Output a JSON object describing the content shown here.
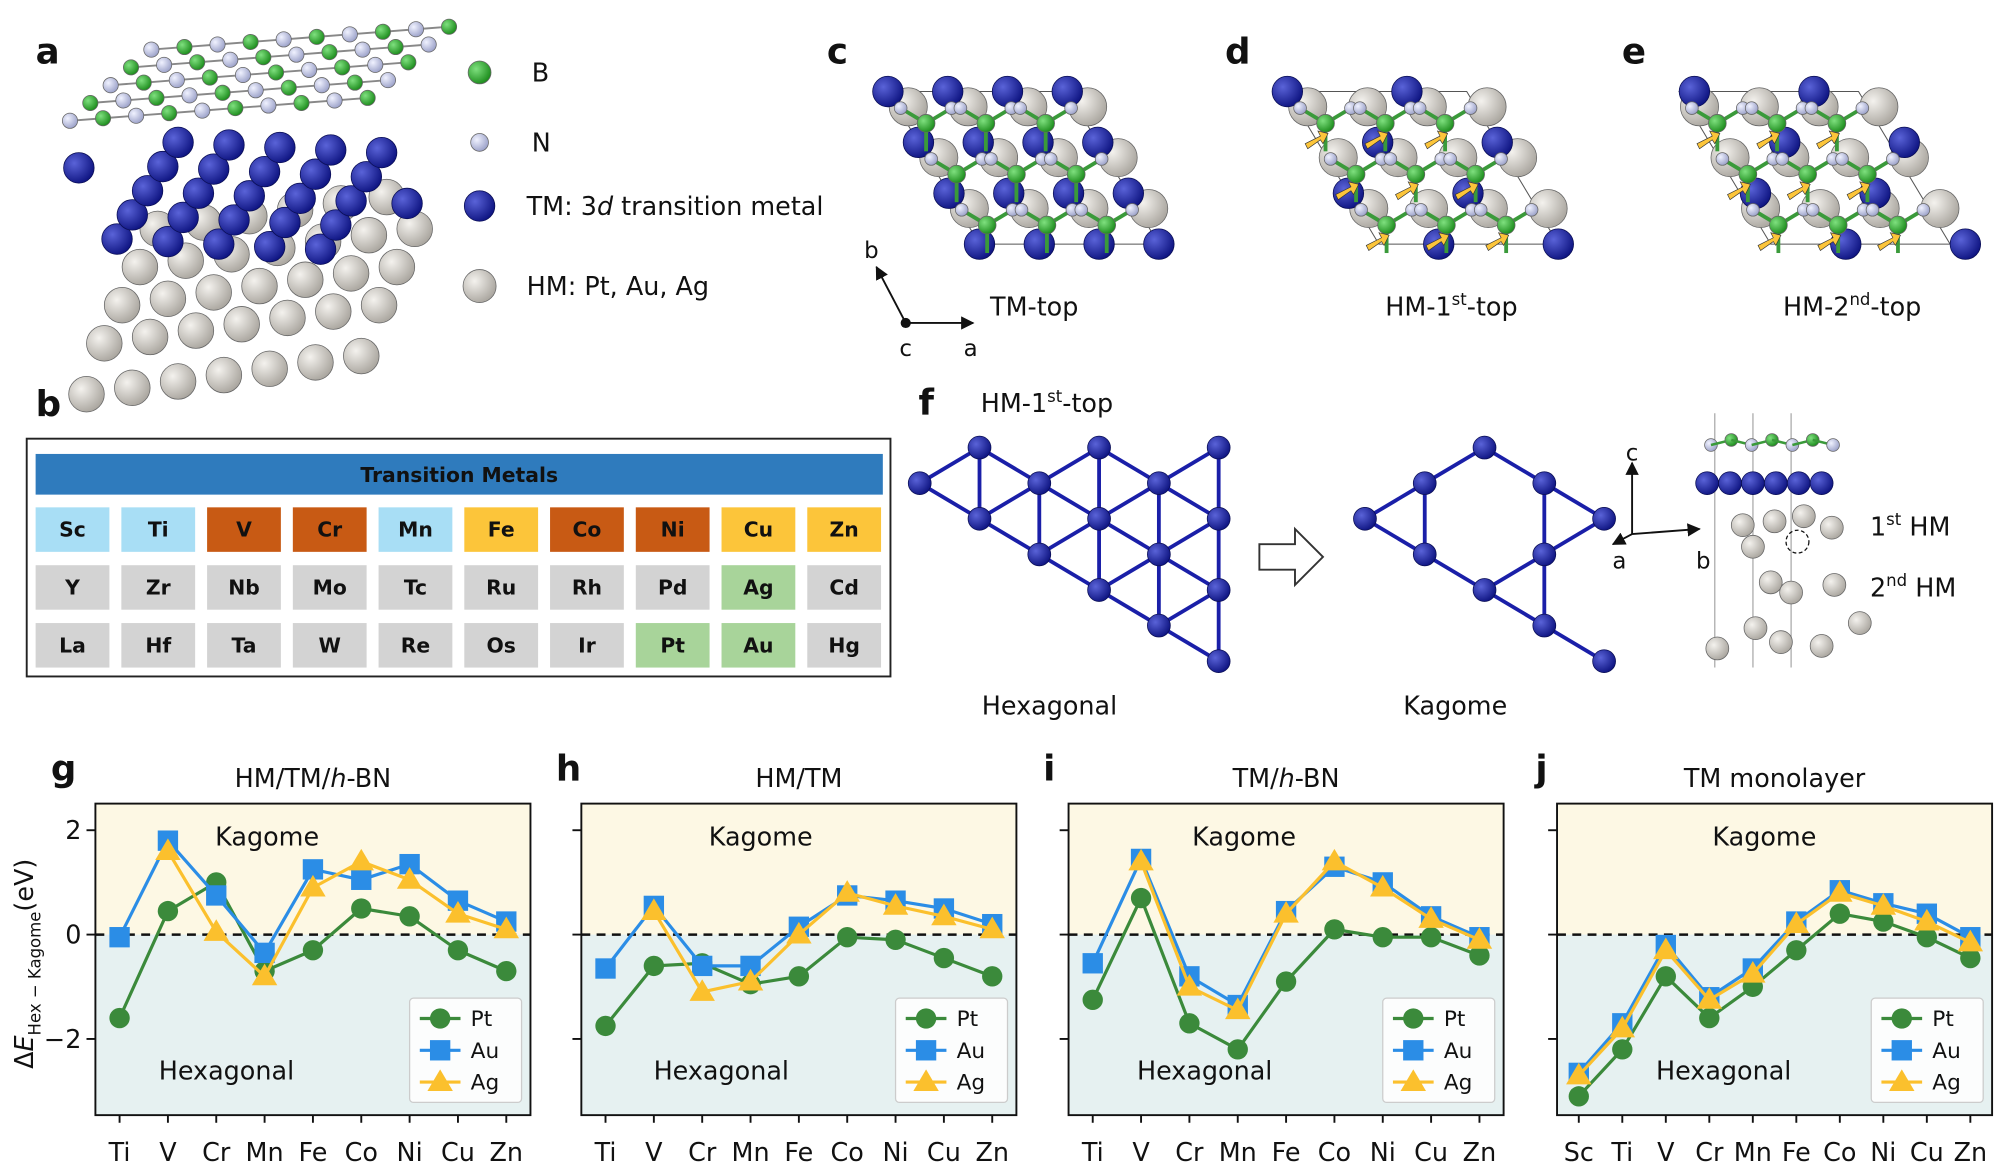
{
  "panel_a": {
    "label": "a",
    "legend": [
      "B",
      "N",
      {
        "before": "TM: 3",
        "italic": "d",
        "after": " transition metal"
      },
      "HM: Pt, Au, Ag"
    ]
  },
  "panel_b": {
    "label": "b",
    "table": {
      "title": "Transition Metals",
      "rows": [
        [
          {
            "symbol": "Sc",
            "color": "#a8def5"
          },
          {
            "symbol": "Ti",
            "color": "#a8def5"
          },
          {
            "symbol": "V",
            "color": "#c85a14"
          },
          {
            "symbol": "Cr",
            "color": "#c85a14"
          },
          {
            "symbol": "Mn",
            "color": "#a8def5"
          },
          {
            "symbol": "Fe",
            "color": "#fcc53a"
          },
          {
            "symbol": "Co",
            "color": "#c85a14"
          },
          {
            "symbol": "Ni",
            "color": "#c85a14"
          },
          {
            "symbol": "Cu",
            "color": "#fcc53a"
          },
          {
            "symbol": "Zn",
            "color": "#fcc53a"
          }
        ],
        [
          {
            "symbol": "Y",
            "color": "#d3d3d3"
          },
          {
            "symbol": "Zr",
            "color": "#d3d3d3"
          },
          {
            "symbol": "Nb",
            "color": "#d3d3d3"
          },
          {
            "symbol": "Mo",
            "color": "#d3d3d3"
          },
          {
            "symbol": "Tc",
            "color": "#d3d3d3"
          },
          {
            "symbol": "Ru",
            "color": "#d3d3d3"
          },
          {
            "symbol": "Rh",
            "color": "#d3d3d3"
          },
          {
            "symbol": "Pd",
            "color": "#d3d3d3"
          },
          {
            "symbol": "Ag",
            "color": "#a8d49a"
          },
          {
            "symbol": "Cd",
            "color": "#d3d3d3"
          }
        ],
        [
          {
            "symbol": "La",
            "color": "#d3d3d3"
          },
          {
            "symbol": "Hf",
            "color": "#d3d3d3"
          },
          {
            "symbol": "Ta",
            "color": "#d3d3d3"
          },
          {
            "symbol": "W",
            "color": "#d3d3d3"
          },
          {
            "symbol": "Re",
            "color": "#d3d3d3"
          },
          {
            "symbol": "Os",
            "color": "#d3d3d3"
          },
          {
            "symbol": "Ir",
            "color": "#d3d3d3"
          },
          {
            "symbol": "Pt",
            "color": "#a8d49a"
          },
          {
            "symbol": "Au",
            "color": "#a8d49a"
          },
          {
            "symbol": "Hg",
            "color": "#d3d3d3"
          }
        ]
      ]
    }
  },
  "panel_c": {
    "label": "c",
    "caption": "TM-top",
    "axes": [
      "b",
      "c",
      "a"
    ]
  },
  "panel_d": {
    "label": "d",
    "caption": {
      "before": "HM-1",
      "sup": "st",
      "after": "-top"
    }
  },
  "panel_e": {
    "label": "e",
    "caption": {
      "before": "HM-2",
      "sup": "nd",
      "after": "-top"
    }
  },
  "panel_f": {
    "label": "f",
    "title": {
      "before": "HM-1",
      "sup": "st",
      "after": "-top"
    },
    "left": "Hexagonal",
    "right": "Kagome",
    "axes": [
      "c",
      "a",
      "b"
    ],
    "layers": [
      {
        "before": "1",
        "sup": "st",
        "after": " HM"
      },
      {
        "before": "2",
        "sup": "nd",
        "after": " HM"
      }
    ]
  },
  "chart_data": [
    {
      "type": "line",
      "panel": "g",
      "title": {
        "before": "HM/TM/",
        "italic": "h",
        "after": "-BN"
      },
      "ylabel": {
        "before": "Δ",
        "italic": "E",
        "sub": "Hex − Kagome",
        "after": "(eV)"
      },
      "categories": [
        "Ti",
        "V",
        "Cr",
        "Mn",
        "Fe",
        "Co",
        "Ni",
        "Cu",
        "Zn"
      ],
      "ylim": [
        -3.46,
        2.51
      ],
      "yticks": [
        {
          "value": -2,
          "label": "−2"
        },
        0,
        2
      ],
      "annotations": [
        "Kagome",
        "Hexagonal"
      ],
      "legend": "lower right",
      "series": [
        {
          "name": "Pt",
          "color": "#3b8a3b",
          "values": [
            -1.6,
            0.45,
            1.0,
            -0.7,
            -0.3,
            0.5,
            0.35,
            -0.3,
            -0.7
          ]
        },
        {
          "name": "Au",
          "color": "#2b8de6",
          "values": [
            -0.05,
            1.8,
            0.75,
            -0.35,
            1.25,
            1.05,
            1.35,
            0.65,
            0.25
          ]
        },
        {
          "name": "Ag",
          "color": "#fbc02d",
          "values": [
            null,
            1.6,
            0.05,
            -0.8,
            0.9,
            1.4,
            1.05,
            0.4,
            0.1
          ]
        }
      ]
    },
    {
      "type": "line",
      "panel": "h",
      "title": "HM/TM",
      "categories": [
        "Ti",
        "V",
        "Cr",
        "Mn",
        "Fe",
        "Co",
        "Ni",
        "Cu",
        "Zn"
      ],
      "ylim": [
        -3.46,
        2.51
      ],
      "yticks": [
        -2,
        0,
        2
      ],
      "annotations": [
        "Kagome",
        "Hexagonal"
      ],
      "legend": "lower right",
      "series": [
        {
          "name": "Pt",
          "color": "#3b8a3b",
          "values": [
            -1.75,
            -0.6,
            -0.55,
            -0.95,
            -0.8,
            -0.05,
            -0.1,
            -0.45,
            -0.8
          ]
        },
        {
          "name": "Au",
          "color": "#2b8de6",
          "values": [
            -0.65,
            0.55,
            -0.6,
            -0.6,
            0.15,
            0.75,
            0.65,
            0.5,
            0.2
          ]
        },
        {
          "name": "Ag",
          "color": "#fbc02d",
          "values": [
            null,
            0.45,
            -1.1,
            -0.9,
            0.0,
            0.8,
            0.55,
            0.35,
            0.1
          ]
        }
      ]
    },
    {
      "type": "line",
      "panel": "i",
      "title": {
        "before": "TM/",
        "italic": "h",
        "after": "-BN"
      },
      "categories": [
        "Ti",
        "V",
        "Cr",
        "Mn",
        "Fe",
        "Co",
        "Ni",
        "Cu",
        "Zn"
      ],
      "ylim": [
        -3.46,
        2.51
      ],
      "yticks": [
        -2,
        0,
        2
      ],
      "annotations": [
        "Kagome",
        "Hexagonal"
      ],
      "legend": "lower right",
      "series": [
        {
          "name": "Pt",
          "color": "#3b8a3b",
          "values": [
            -1.25,
            0.7,
            -1.7,
            -2.2,
            -0.9,
            0.1,
            -0.05,
            -0.05,
            -0.4
          ]
        },
        {
          "name": "Au",
          "color": "#2b8de6",
          "values": [
            -0.55,
            1.45,
            -0.8,
            -1.35,
            0.45,
            1.3,
            1.0,
            0.35,
            -0.05
          ]
        },
        {
          "name": "Ag",
          "color": "#fbc02d",
          "values": [
            null,
            1.4,
            -1.0,
            -1.45,
            0.4,
            1.4,
            0.9,
            0.3,
            -0.1
          ]
        }
      ]
    },
    {
      "type": "line",
      "panel": "j",
      "title": "TM monolayer",
      "categories": [
        "Sc",
        "Ti",
        "V",
        "Cr",
        "Mn",
        "Fe",
        "Co",
        "Ni",
        "Cu",
        "Zn"
      ],
      "ylim": [
        -3.46,
        2.51
      ],
      "yticks": [
        -2,
        0,
        2
      ],
      "annotations": [
        "Kagome",
        "Hexagonal"
      ],
      "legend": "lower right",
      "series": [
        {
          "name": "Pt",
          "color": "#3b8a3b",
          "values": [
            -3.1,
            -2.2,
            -0.8,
            -1.6,
            -1.0,
            -0.3,
            0.4,
            0.25,
            -0.05,
            -0.45
          ]
        },
        {
          "name": "Au",
          "color": "#2b8de6",
          "values": [
            -2.65,
            -1.7,
            -0.2,
            -1.2,
            -0.65,
            0.25,
            0.85,
            0.6,
            0.4,
            -0.05
          ]
        },
        {
          "name": "Ag",
          "color": "#fbc02d",
          "values": [
            -2.7,
            -1.8,
            -0.3,
            -1.25,
            -0.75,
            0.2,
            0.8,
            0.55,
            0.25,
            -0.15
          ]
        }
      ]
    }
  ]
}
